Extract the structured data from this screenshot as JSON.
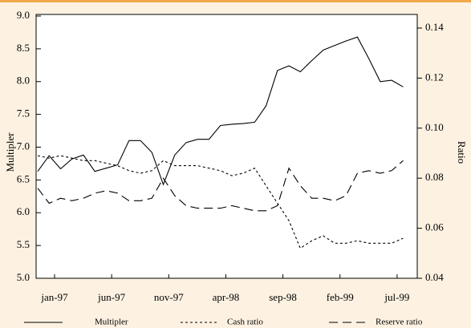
{
  "chart_data": {
    "type": "line",
    "categories": [
      "jan-97",
      null,
      null,
      null,
      null,
      "jun-97",
      null,
      null,
      null,
      null,
      "nov-97",
      null,
      null,
      null,
      null,
      "apr-98",
      null,
      null,
      null,
      null,
      "sep-98",
      null,
      null,
      null,
      null,
      "feb-99",
      null,
      null,
      null,
      null,
      "jul-99",
      null,
      null
    ],
    "y_label": "Multipler",
    "y2_label": "Ratio",
    "ylim": [
      5.0,
      9.0
    ],
    "yticks": [
      {
        "value": 5,
        "label": "5.0"
      },
      5.5,
      {
        "value": 6,
        "label": "6.0"
      },
      6.5,
      {
        "value": 7,
        "label": "7.0"
      },
      7.5,
      {
        "value": 8,
        "label": "8.0"
      },
      8.5,
      {
        "value": 9,
        "label": "9.0"
      }
    ],
    "y2lim": [
      0.04,
      0.1448
    ],
    "y2ticks": [
      0.04,
      0.06,
      0.08,
      {
        "value": 0.1,
        "label": "0.10"
      },
      0.12,
      0.14
    ],
    "series": [
      {
        "name": "Multipler",
        "color": "#000000",
        "dash": "none",
        "values": [
          6.63,
          6.87,
          6.67,
          6.82,
          6.88,
          6.63,
          6.68,
          6.73,
          7.1,
          7.1,
          6.92,
          6.43,
          6.88,
          7.07,
          7.12,
          7.12,
          7.33,
          7.35,
          7.36,
          7.38,
          7.63,
          8.17,
          8.24,
          8.15,
          8.32,
          8.48,
          8.55,
          8.62,
          8.68,
          8.35,
          8.0,
          8.02,
          7.92
        ]
      },
      {
        "name": "Cash ratio",
        "color": "#000000",
        "dash": "3,3",
        "axis": "y2",
        "values": [
          0.089,
          0.088,
          0.089,
          0.088,
          0.087,
          0.087,
          0.086,
          0.085,
          0.083,
          0.082,
          0.083,
          0.087,
          0.085,
          0.085,
          0.085,
          0.084,
          0.083,
          0.081,
          0.082,
          0.084,
          0.077,
          0.07,
          0.063,
          0.052,
          0.055,
          0.057,
          0.054,
          0.054,
          0.055,
          0.054,
          0.054,
          0.054,
          0.056
        ]
      },
      {
        "name": "Reserve ratio",
        "color": "#000000",
        "dash": "11,6",
        "axis": "y2",
        "values": [
          0.076,
          0.07,
          0.072,
          0.071,
          0.072,
          0.074,
          0.075,
          0.074,
          0.071,
          0.071,
          0.072,
          0.08,
          0.073,
          0.069,
          0.068,
          0.068,
          0.068,
          0.069,
          0.068,
          0.067,
          0.067,
          0.069,
          0.084,
          0.077,
          0.072,
          0.072,
          0.071,
          0.073,
          0.082,
          0.083,
          0.082,
          0.083,
          0.087
        ]
      }
    ]
  }
}
